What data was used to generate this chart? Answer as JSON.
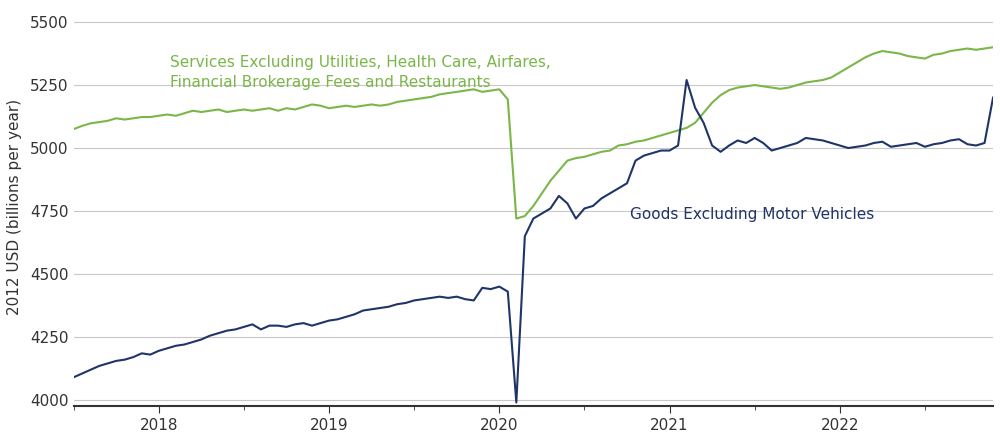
{
  "ylabel": "2012 USD (billions per year)",
  "ylim": [
    3975,
    5560
  ],
  "yticks": [
    4000,
    4250,
    4500,
    4750,
    5000,
    5250,
    5500
  ],
  "services_label": "Services Excluding Utilities, Health Care, Airfares,\nFinancial Brokerage Fees and Restaurants",
  "goods_label": "Goods Excluding Motor Vehicles",
  "services_color": "#7ab648",
  "goods_color": "#1f3468",
  "background_color": "#ffffff",
  "grid_color": "#c8c8c8",
  "services_data": [
    5075,
    5088,
    5098,
    5103,
    5108,
    5118,
    5113,
    5118,
    5123,
    5123,
    5128,
    5133,
    5128,
    5138,
    5148,
    5143,
    5148,
    5153,
    5143,
    5148,
    5153,
    5148,
    5153,
    5158,
    5148,
    5158,
    5153,
    5163,
    5173,
    5168,
    5158,
    5163,
    5168,
    5163,
    5168,
    5173,
    5168,
    5173,
    5183,
    5188,
    5193,
    5198,
    5203,
    5213,
    5218,
    5223,
    5228,
    5233,
    5223,
    5228,
    5233,
    5193,
    4720,
    4730,
    4770,
    4820,
    4870,
    4910,
    4950,
    4960,
    4965,
    4975,
    4985,
    4990,
    5010,
    5015,
    5025,
    5030,
    5040,
    5050,
    5060,
    5070,
    5080,
    5100,
    5140,
    5180,
    5210,
    5230,
    5240,
    5245,
    5250,
    5245,
    5240,
    5235,
    5240,
    5250,
    5260,
    5265,
    5270,
    5280,
    5300,
    5320,
    5340,
    5360,
    5375,
    5385,
    5380,
    5375,
    5365,
    5360,
    5355,
    5370,
    5375,
    5385,
    5390,
    5395,
    5390,
    5395,
    5400
  ],
  "goods_data": [
    4090,
    4105,
    4120,
    4135,
    4145,
    4155,
    4160,
    4170,
    4185,
    4180,
    4195,
    4205,
    4215,
    4220,
    4230,
    4240,
    4255,
    4265,
    4275,
    4280,
    4290,
    4300,
    4280,
    4295,
    4295,
    4290,
    4300,
    4305,
    4295,
    4305,
    4315,
    4320,
    4330,
    4340,
    4355,
    4360,
    4365,
    4370,
    4380,
    4385,
    4395,
    4400,
    4405,
    4410,
    4405,
    4410,
    4400,
    4395,
    4445,
    4440,
    4450,
    4430,
    3990,
    4650,
    4720,
    4740,
    4760,
    4810,
    4780,
    4720,
    4760,
    4770,
    4800,
    4820,
    4840,
    4860,
    4950,
    4970,
    4980,
    4990,
    4990,
    5010,
    5270,
    5160,
    5100,
    5010,
    4985,
    5010,
    5030,
    5020,
    5040,
    5020,
    4990,
    5000,
    5010,
    5020,
    5040,
    5035,
    5030,
    5020,
    5010,
    5000,
    5005,
    5010,
    5020,
    5025,
    5005,
    5010,
    5015,
    5020,
    5005,
    5015,
    5020,
    5030,
    5035,
    5015,
    5010,
    5020,
    5200
  ],
  "n_points": 109,
  "x_start_year": 2017.5,
  "x_end_year": 2022.9,
  "xtick_years": [
    2018,
    2019,
    2020,
    2021,
    2022
  ],
  "tick_color": "#333333",
  "label_fontsize": 11,
  "annotation_fontsize": 11
}
